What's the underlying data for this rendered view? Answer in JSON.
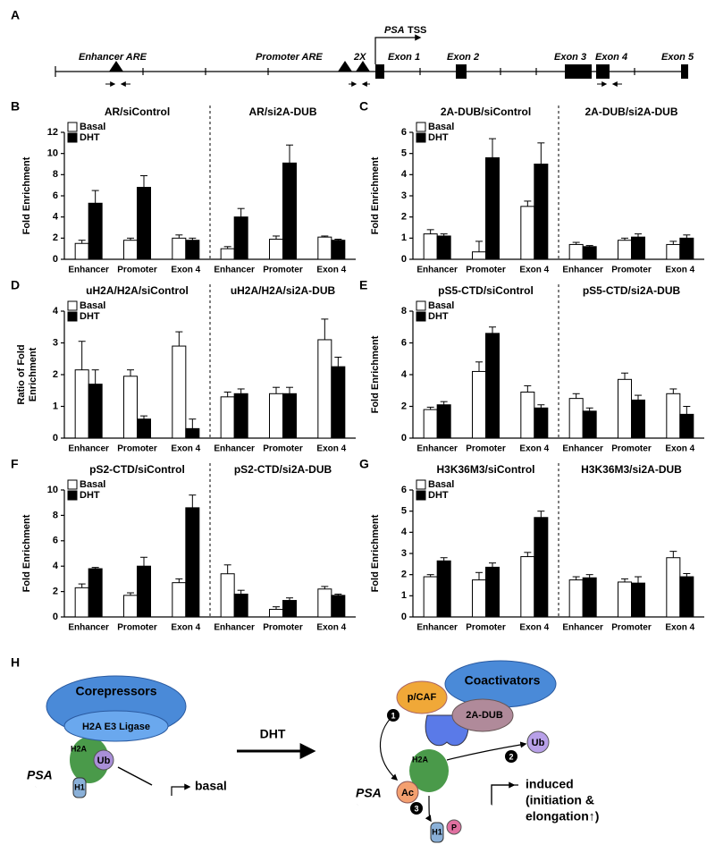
{
  "gene_map": {
    "panel": "A",
    "labels": [
      "Enhancer ARE",
      "Promoter ARE",
      "2X",
      "PSA",
      "TSS",
      "Exon 1",
      "Exon 2",
      "Exon 3",
      "Exon 4",
      "Exon 5"
    ]
  },
  "chart_data": [
    {
      "type": "bar",
      "panel": "B",
      "ylabel": [
        "Fold Enrichment"
      ],
      "ylim": [
        0,
        12
      ],
      "yticks": [
        0,
        2,
        4,
        6,
        8,
        10,
        12
      ],
      "categories": [
        "Enhancer",
        "Promoter",
        "Exon 4"
      ],
      "series": [
        {
          "name": "Basal",
          "color": "#ffffff"
        },
        {
          "name": "DHT",
          "color": "#000000"
        }
      ],
      "facets": [
        {
          "title": "AR/siControl",
          "values": [
            [
              1.5,
              1.8,
              2.0
            ],
            [
              5.3,
              6.8,
              1.8
            ]
          ],
          "errors": [
            [
              0.3,
              0.2,
              0.3
            ],
            [
              1.2,
              1.1,
              0.2
            ]
          ]
        },
        {
          "title": "AR/si2A-DUB",
          "values": [
            [
              1.0,
              1.9,
              2.1
            ],
            [
              4.0,
              9.1,
              1.8
            ]
          ],
          "errors": [
            [
              0.2,
              0.3,
              0.1
            ],
            [
              0.8,
              1.7,
              0.1
            ]
          ]
        }
      ]
    },
    {
      "type": "bar",
      "panel": "C",
      "ylabel": [
        "Fold Enrichment"
      ],
      "ylim": [
        0,
        6
      ],
      "yticks": [
        0,
        1,
        2,
        3,
        4,
        5,
        6
      ],
      "categories": [
        "Enhancer",
        "Promoter",
        "Exon 4"
      ],
      "series": [
        {
          "name": "Basal",
          "color": "#ffffff"
        },
        {
          "name": "DHT",
          "color": "#000000"
        }
      ],
      "facets": [
        {
          "title": "2A-DUB/siControl",
          "values": [
            [
              1.2,
              0.35,
              2.5
            ],
            [
              1.1,
              4.8,
              4.5
            ]
          ],
          "errors": [
            [
              0.2,
              0.5,
              0.25
            ],
            [
              0.1,
              0.9,
              1.0
            ]
          ]
        },
        {
          "title": "2A-DUB/si2A-DUB",
          "values": [
            [
              0.7,
              0.9,
              0.7
            ],
            [
              0.6,
              1.05,
              1.0
            ]
          ],
          "errors": [
            [
              0.1,
              0.1,
              0.15
            ],
            [
              0.05,
              0.15,
              0.15
            ]
          ]
        }
      ]
    },
    {
      "type": "bar",
      "panel": "D",
      "ylabel": [
        "Ratio of Fold",
        "Enrichment"
      ],
      "ylim": [
        0,
        4
      ],
      "yticks": [
        0,
        1,
        2,
        3,
        4
      ],
      "categories": [
        "Enhancer",
        "Promoter",
        "Exon 4"
      ],
      "series": [
        {
          "name": "Basal",
          "color": "#ffffff"
        },
        {
          "name": "DHT",
          "color": "#000000"
        }
      ],
      "facets": [
        {
          "title": "uH2A/H2A/siControl",
          "values": [
            [
              2.15,
              1.95,
              2.9
            ],
            [
              1.7,
              0.6,
              0.3
            ]
          ],
          "errors": [
            [
              0.9,
              0.2,
              0.45
            ],
            [
              0.45,
              0.1,
              0.3
            ]
          ]
        },
        {
          "title": "uH2A/H2A/si2A-DUB",
          "values": [
            [
              1.3,
              1.4,
              3.1
            ],
            [
              1.4,
              1.4,
              2.25
            ]
          ],
          "errors": [
            [
              0.15,
              0.2,
              0.65
            ],
            [
              0.15,
              0.2,
              0.3
            ]
          ]
        }
      ]
    },
    {
      "type": "bar",
      "panel": "E",
      "ylabel": [
        "Fold Enrichment"
      ],
      "ylim": [
        0,
        8
      ],
      "yticks": [
        0,
        2,
        4,
        6,
        8
      ],
      "categories": [
        "Enhancer",
        "Promoter",
        "Exon 4"
      ],
      "series": [
        {
          "name": "Basal",
          "color": "#ffffff"
        },
        {
          "name": "DHT",
          "color": "#000000"
        }
      ],
      "facets": [
        {
          "title": "pS5-CTD/siControl",
          "values": [
            [
              1.8,
              4.2,
              2.9
            ],
            [
              2.1,
              6.6,
              1.9
            ]
          ],
          "errors": [
            [
              0.15,
              0.6,
              0.4
            ],
            [
              0.2,
              0.4,
              0.2
            ]
          ]
        },
        {
          "title": "pS5-CTD/si2A-DUB",
          "values": [
            [
              2.5,
              3.7,
              2.8
            ],
            [
              1.7,
              2.4,
              1.5
            ]
          ],
          "errors": [
            [
              0.3,
              0.4,
              0.3
            ],
            [
              0.2,
              0.3,
              0.5
            ]
          ]
        }
      ]
    },
    {
      "type": "bar",
      "panel": "F",
      "ylabel": [
        "Fold Enrichment"
      ],
      "ylim": [
        0,
        10
      ],
      "yticks": [
        0,
        2,
        4,
        6,
        8,
        10
      ],
      "categories": [
        "Enhancer",
        "Promoter",
        "Exon 4"
      ],
      "series": [
        {
          "name": "Basal",
          "color": "#ffffff"
        },
        {
          "name": "DHT",
          "color": "#000000"
        }
      ],
      "facets": [
        {
          "title": "pS2-CTD/siControl",
          "values": [
            [
              2.3,
              1.7,
              2.7
            ],
            [
              3.8,
              4.0,
              8.6
            ]
          ],
          "errors": [
            [
              0.3,
              0.2,
              0.3
            ],
            [
              0.1,
              0.7,
              1.0
            ]
          ]
        },
        {
          "title": "pS2-CTD/si2A-DUB",
          "values": [
            [
              3.4,
              0.6,
              2.2
            ],
            [
              1.8,
              1.3,
              1.7
            ]
          ],
          "errors": [
            [
              0.7,
              0.2,
              0.2
            ],
            [
              0.3,
              0.2,
              0.1
            ]
          ]
        }
      ]
    },
    {
      "type": "bar",
      "panel": "G",
      "ylabel": [
        "Fold Enrichment"
      ],
      "ylim": [
        0,
        6
      ],
      "yticks": [
        0,
        1,
        2,
        3,
        4,
        5,
        6
      ],
      "categories": [
        "Enhancer",
        "Promoter",
        "Exon 4"
      ],
      "series": [
        {
          "name": "Basal",
          "color": "#ffffff"
        },
        {
          "name": "DHT",
          "color": "#000000"
        }
      ],
      "facets": [
        {
          "title": "H3K36M3/siControl",
          "values": [
            [
              1.9,
              1.75,
              2.85
            ],
            [
              2.65,
              2.35,
              4.7
            ]
          ],
          "errors": [
            [
              0.1,
              0.35,
              0.2
            ],
            [
              0.15,
              0.2,
              0.3
            ]
          ]
        },
        {
          "title": "H3K36M3/si2A-DUB",
          "values": [
            [
              1.75,
              1.65,
              2.8
            ],
            [
              1.85,
              1.6,
              1.9
            ]
          ],
          "errors": [
            [
              0.15,
              0.15,
              0.3
            ],
            [
              0.15,
              0.3,
              0.15
            ]
          ]
        }
      ]
    }
  ],
  "model": {
    "panel": "H",
    "labels": [
      "Corepressors",
      "H2A E3 Ligase",
      "H2A",
      "Ub",
      "H1",
      "PSA",
      "basal",
      "DHT",
      "p/CAF",
      "Coactivators",
      "2A-DUB",
      "H2A",
      "Ac",
      "Ub",
      "PSA",
      "induced",
      "(initiation &",
      "elongation↑)",
      "H1",
      "P",
      "1",
      "2",
      "3"
    ]
  }
}
